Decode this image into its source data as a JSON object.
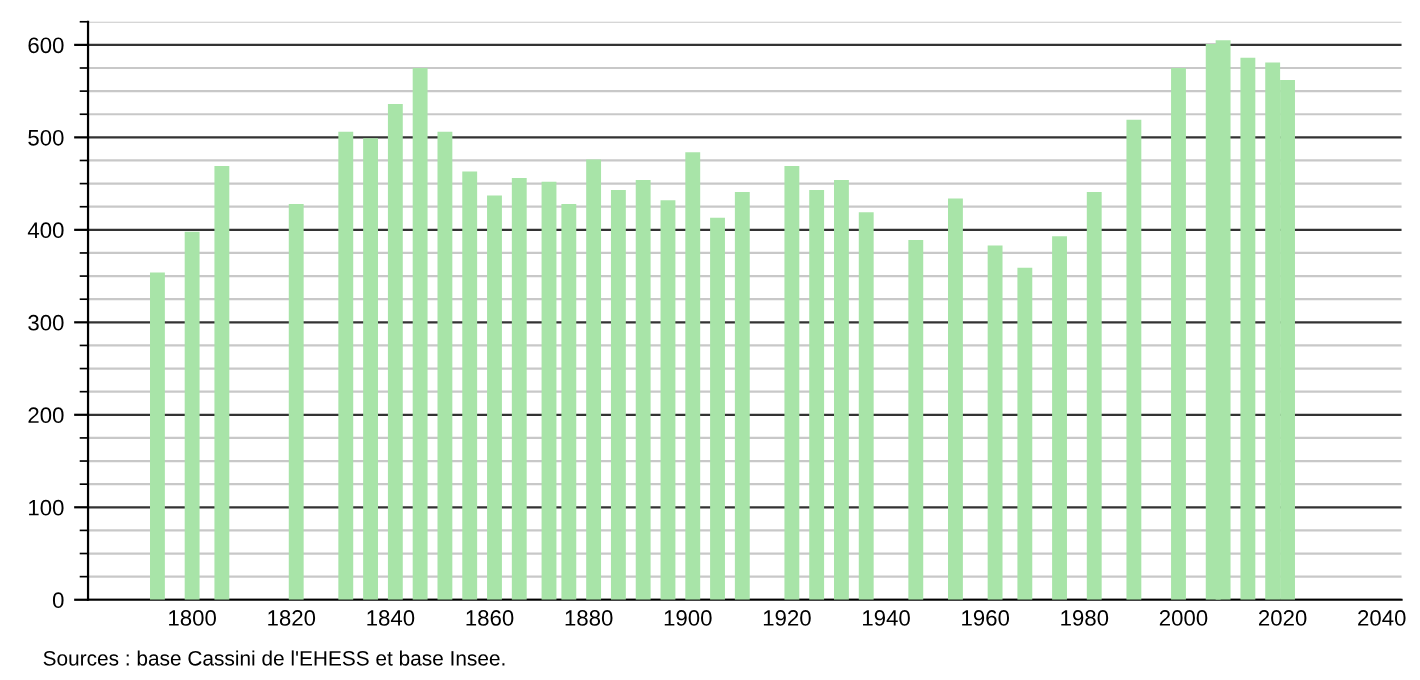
{
  "chart_data": {
    "type": "bar",
    "x": [
      1793,
      1800,
      1806,
      1821,
      1831,
      1836,
      1841,
      1846,
      1851,
      1856,
      1861,
      1866,
      1872,
      1876,
      1881,
      1886,
      1891,
      1896,
      1901,
      1906,
      1911,
      1921,
      1926,
      1931,
      1936,
      1946,
      1954,
      1962,
      1968,
      1975,
      1982,
      1990,
      1999,
      2006,
      2008,
      2013,
      2018,
      2021
    ],
    "values": [
      354,
      398,
      469,
      428,
      506,
      499,
      536,
      575,
      506,
      463,
      437,
      456,
      452,
      428,
      476,
      443,
      454,
      432,
      484,
      413,
      441,
      469,
      443,
      454,
      419,
      389,
      434,
      383,
      359,
      393,
      441,
      519,
      575,
      601,
      605,
      586,
      581,
      562
    ],
    "color": "#a8e4a8",
    "xlim": [
      1779,
      2044
    ],
    "xticks": [
      1800,
      1820,
      1840,
      1860,
      1880,
      1900,
      1920,
      1940,
      1960,
      1980,
      2000,
      2020,
      2040
    ],
    "ylim": [
      0,
      625
    ],
    "yticks": [
      0,
      {
        "value": 25,
        "label": null
      },
      {
        "value": 50,
        "label": null
      },
      {
        "value": 75,
        "label": null
      },
      100,
      {
        "value": 125,
        "label": null
      },
      {
        "value": 150,
        "label": null
      },
      {
        "value": 175,
        "label": null
      },
      200,
      {
        "value": 225,
        "label": null
      },
      {
        "value": 250,
        "label": null
      },
      {
        "value": 275,
        "label": null
      },
      300,
      {
        "value": 325,
        "label": null
      },
      {
        "value": 350,
        "label": null
      },
      {
        "value": 375,
        "label": null
      },
      400,
      {
        "value": 425,
        "label": null
      },
      {
        "value": 450,
        "label": null
      },
      {
        "value": 475,
        "label": null
      },
      500,
      {
        "value": 525,
        "label": null
      },
      {
        "value": 550,
        "label": null
      },
      {
        "value": 575,
        "label": null
      },
      600,
      {
        "value": 625,
        "label": null
      }
    ],
    "grid": "y",
    "annotations": [
      "Sources : base Cassini de l'EHESS et base Insee."
    ]
  }
}
